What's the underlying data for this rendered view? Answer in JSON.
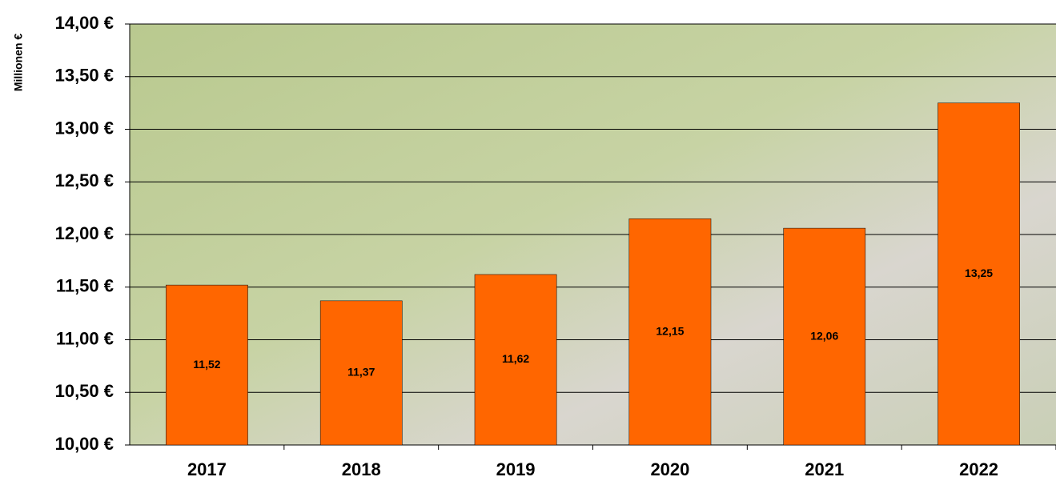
{
  "chart_data": {
    "type": "bar",
    "y_label": "Millionen €",
    "categories": [
      "2017",
      "2018",
      "2019",
      "2020",
      "2021",
      "2022"
    ],
    "values": [
      11.52,
      11.37,
      11.62,
      12.15,
      12.06,
      13.25
    ],
    "value_labels": [
      "11,52",
      "11,37",
      "11,62",
      "12,15",
      "12,06",
      "13,25"
    ],
    "color": "#ff6600",
    "ylim": [
      10,
      14
    ],
    "yticks": [
      {
        "value": 10,
        "label": "10,00 €"
      },
      {
        "value": 10.5,
        "label": "10,50 €"
      },
      {
        "value": 11,
        "label": "11,00 €"
      },
      {
        "value": 11.5,
        "label": "11,50 €"
      },
      {
        "value": 12,
        "label": "12,00 €"
      },
      {
        "value": 12.5,
        "label": "12,50 €"
      },
      {
        "value": 13,
        "label": "13,00 €"
      },
      {
        "value": 13.5,
        "label": "13,50 €"
      },
      {
        "value": 14,
        "label": "14,00 €"
      }
    ],
    "grid": true
  }
}
